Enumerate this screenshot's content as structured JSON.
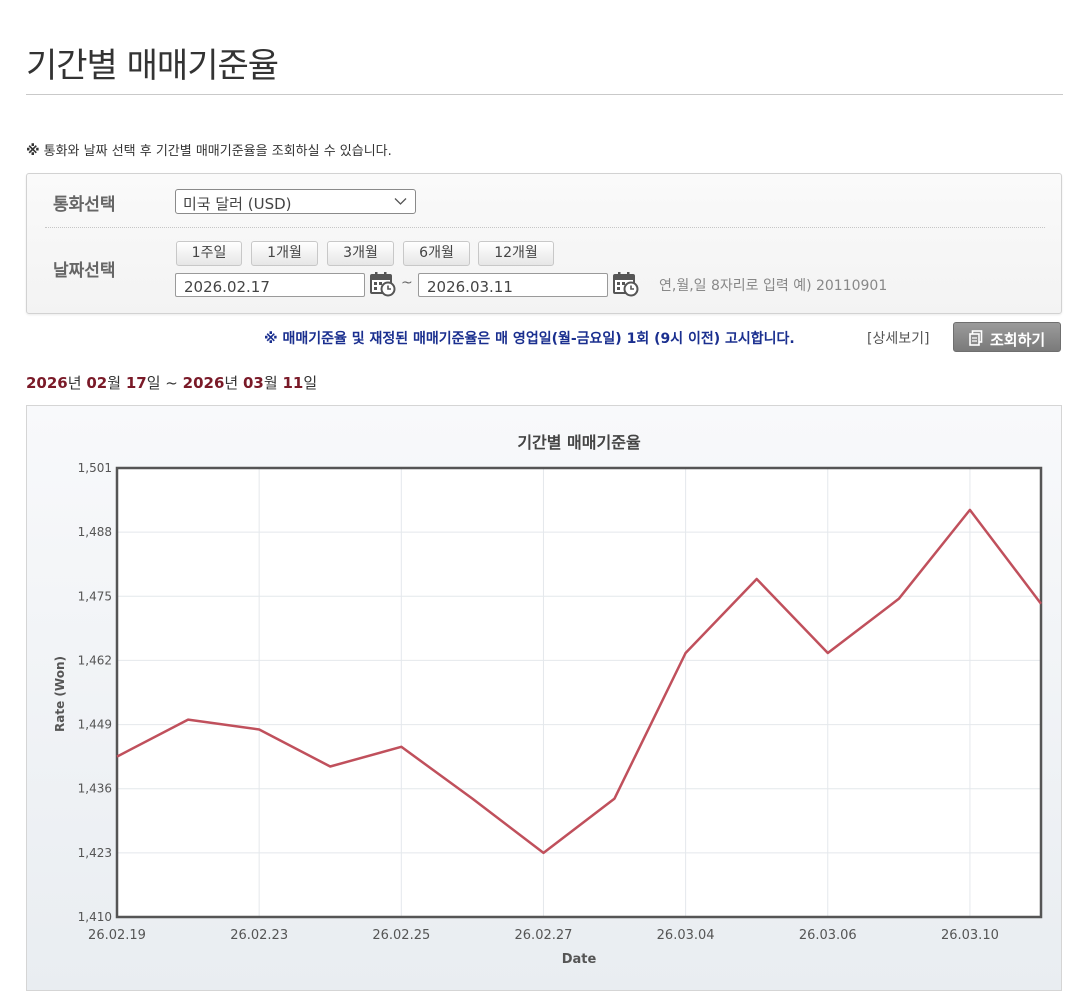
{
  "page": {
    "title": "기간별 매매기준율",
    "notice_mark": "※",
    "notice": "통화와 날짜 선택 후 기간별 매매기준율을 조회하실 수 있습니다."
  },
  "form": {
    "currency_label": "통화선택",
    "currency_value": "미국 달러 (USD)",
    "date_label": "날짜선택",
    "period_buttons": [
      "1주일",
      "1개월",
      "3개월",
      "6개월",
      "12개월"
    ],
    "start_date": "2026.02.17",
    "end_date": "2026.03.11",
    "separator": "~",
    "date_hint": "연,월,일 8자리로 입력 예) 20110901"
  },
  "info": {
    "text": "※ 매매기준율 및 재정된 매매기준율은 매 영업일(월-금요일) 1회 (9시 이전) 고시합니다.",
    "detail_link": "[상세보기]",
    "search_button": "조회하기"
  },
  "range": {
    "start_year": "2026",
    "start_month": "02",
    "start_day": "17",
    "end_year": "2026",
    "end_month": "03",
    "end_day": "11",
    "year_unit": "년",
    "month_unit": "월",
    "day_unit": "일",
    "sep": "~"
  },
  "colors": {
    "line": "#c0505c",
    "info_text": "#1a2f8f",
    "range_number": "#7a1a28"
  },
  "chart_data": {
    "type": "line",
    "title": "기간별 매매기준율",
    "xlabel": "Date",
    "ylabel": "Rate (Won)",
    "x": [
      "26.02.19",
      "26.02.20",
      "26.02.23",
      "26.02.24",
      "26.02.25",
      "26.02.26",
      "26.02.27",
      "26.03.03",
      "26.03.04",
      "26.03.05",
      "26.03.06",
      "26.03.09",
      "26.03.10",
      "26.03.11"
    ],
    "values": [
      1442.5,
      1450.0,
      1448.0,
      1440.5,
      1444.5,
      1434.0,
      1423.0,
      1434.0,
      1463.5,
      1478.5,
      1463.5,
      1474.5,
      1492.5,
      1473.5
    ],
    "x_tick_labels": [
      "26.02.19",
      "26.02.23",
      "26.02.25",
      "26.02.27",
      "26.03.04",
      "26.03.06",
      "26.03.10"
    ],
    "y_ticks": [
      "1,410",
      "1,423",
      "1,436",
      "1,449",
      "1,462",
      "1,475",
      "1,488",
      "1,501"
    ],
    "ylim": [
      1410,
      1501
    ],
    "grid": true,
    "legend": "none"
  }
}
